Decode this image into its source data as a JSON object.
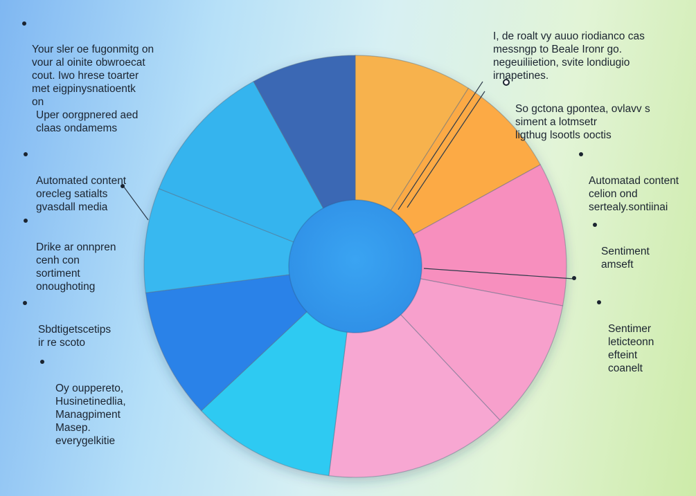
{
  "annotations": [
    {
      "id": "a1",
      "text": "Your sler oe fugonmitg on\nvour al oinite obwroecat\ncout. Iwo hrese toarter\nmet eigpinysnatioentk\non"
    },
    {
      "id": "a2",
      "text": "Uper oorgpnered aed\nclaas ondamems"
    },
    {
      "id": "a3",
      "text": "Automated content\norecleg satialts\ngvasdall media"
    },
    {
      "id": "a4",
      "text": "Drike ar onnpren\ncenh con\nsortiment\nonoughoting"
    },
    {
      "id": "a5",
      "text": "Sbdtigetscetips\nir re scoto"
    },
    {
      "id": "a6",
      "text": "Oy ouppereto,\nHusinetinedlia,\nManagpiment\nMasep.\neverygelkitie"
    },
    {
      "id": "a7",
      "text": "I, de roalt vy auuo riodianco cas\nmessngp to Beale Ironr go.\nnegeuiliietion, svite londiugio\nirnapetines."
    },
    {
      "id": "a8",
      "text": "So gctona gpontea, ovlavv s\nsiment a lotmsetr\nligthug lsootls ooctis"
    },
    {
      "id": "a9",
      "text": "Automatad content\ncelion ond\nsertealy.sontiinai"
    },
    {
      "id": "a10",
      "text": "Sentiment\namseft"
    },
    {
      "id": "a11",
      "text": "Sentimer\nleticteonn\nefteint\ncoanelt"
    }
  ],
  "chart_data": {
    "type": "pie",
    "title": "",
    "donut": true,
    "slices": [
      {
        "value": 9,
        "color": "#f7b24d"
      },
      {
        "value": 8,
        "color": "#fcaa45"
      },
      {
        "value": 11,
        "color": "#f78fbe"
      },
      {
        "value": 10,
        "color": "#f7a0cc"
      },
      {
        "value": 14,
        "color": "#f7a7d2"
      },
      {
        "value": 11,
        "color": "#2dcaf2"
      },
      {
        "value": 10,
        "color": "#2b82e8"
      },
      {
        "value": 8,
        "color": "#39b8f0"
      },
      {
        "value": 11,
        "color": "#34b4ee"
      },
      {
        "value": 8,
        "color": "#3b68b4"
      }
    ]
  }
}
